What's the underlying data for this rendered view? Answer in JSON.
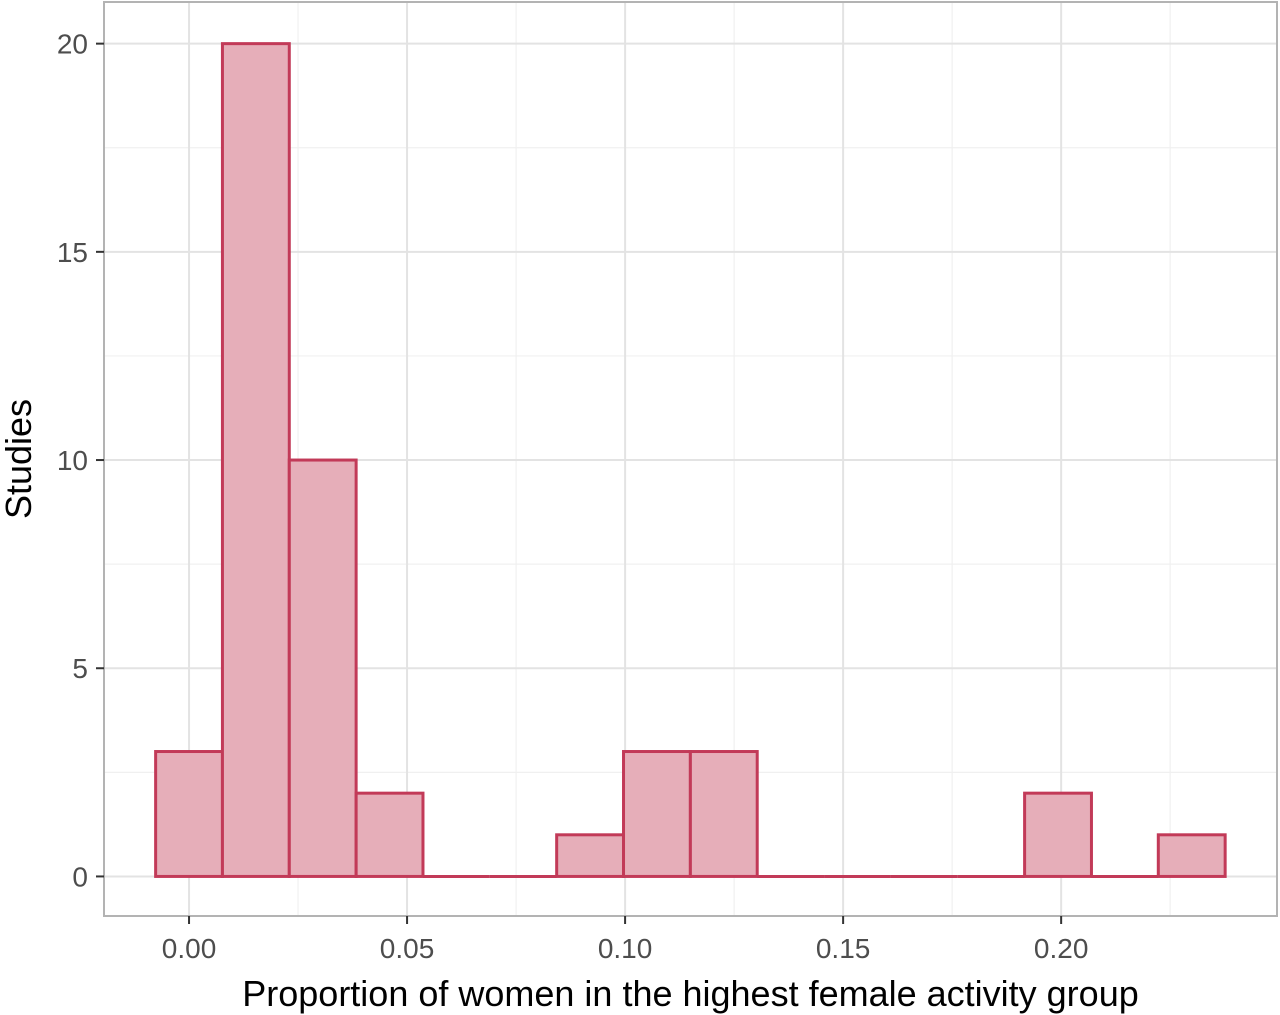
{
  "chart_data": {
    "type": "bar",
    "xlabel": "Proportion of women in the highest female activity group",
    "ylabel": "Studies",
    "bin_width": 0.01533,
    "bins": [
      {
        "x0": -0.00766,
        "x1": 0.00766,
        "count": 3
      },
      {
        "x0": 0.00766,
        "x1": 0.02299,
        "count": 20
      },
      {
        "x0": 0.02299,
        "x1": 0.03832,
        "count": 10
      },
      {
        "x0": 0.03832,
        "x1": 0.05365,
        "count": 2
      },
      {
        "x0": 0.05365,
        "x1": 0.06898,
        "count": 0
      },
      {
        "x0": 0.06898,
        "x1": 0.08431,
        "count": 0
      },
      {
        "x0": 0.08431,
        "x1": 0.09964,
        "count": 1
      },
      {
        "x0": 0.09964,
        "x1": 0.11497,
        "count": 3
      },
      {
        "x0": 0.11497,
        "x1": 0.1303,
        "count": 3
      },
      {
        "x0": 0.1303,
        "x1": 0.14563,
        "count": 0
      },
      {
        "x0": 0.14563,
        "x1": 0.16096,
        "count": 0
      },
      {
        "x0": 0.16096,
        "x1": 0.17629,
        "count": 0
      },
      {
        "x0": 0.17629,
        "x1": 0.19162,
        "count": 0
      },
      {
        "x0": 0.19162,
        "x1": 0.20695,
        "count": 2
      },
      {
        "x0": 0.20695,
        "x1": 0.22228,
        "count": 0
      },
      {
        "x0": 0.22228,
        "x1": 0.23761,
        "count": 1
      }
    ],
    "xlim": [
      -0.0195,
      0.2495
    ],
    "ylim": [
      -0.95,
      21.0
    ],
    "xticks": [
      0.0,
      0.05,
      0.1,
      0.15,
      0.2
    ],
    "xtick_labels": [
      "0.00",
      "0.05",
      "0.10",
      "0.15",
      "0.20"
    ],
    "yticks": [
      0,
      5,
      10,
      15,
      20
    ],
    "ytick_labels": [
      "0",
      "5",
      "10",
      "15",
      "20"
    ],
    "x_minor_grid": [
      0.025,
      0.075,
      0.125,
      0.175,
      0.225
    ],
    "y_minor_grid": [
      2.5,
      7.5,
      12.5,
      17.5
    ],
    "grid": true,
    "colors": {
      "bar_fill": "#e6aeb9",
      "bar_stroke": "#c23a58",
      "grid_major": "#e3e3e3",
      "grid_minor": "#f0f0f0",
      "panel_border": "#b3b3b3"
    }
  }
}
